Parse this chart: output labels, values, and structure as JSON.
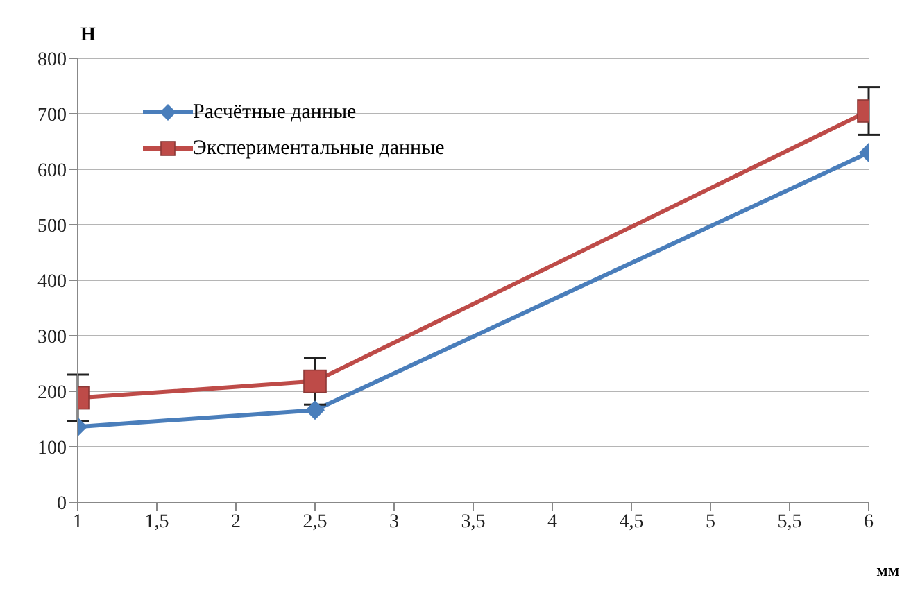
{
  "chart_data": {
    "type": "line",
    "xlabel": "мм",
    "ylabel": "Н",
    "x": [
      1,
      2.5,
      6
    ],
    "series": [
      {
        "name": "Расчётные данные",
        "color": "#4a7ebb",
        "marker": "diamond",
        "values": [
          136,
          166,
          630
        ]
      },
      {
        "name": "Экспериментальные данные",
        "color": "#be4b48",
        "marker": "square",
        "values": [
          188,
          218,
          705
        ],
        "errors": [
          42,
          42,
          43
        ]
      }
    ],
    "xlim": [
      1,
      6
    ],
    "xticks": [
      1,
      {
        "value": 1.5,
        "label": "1,5"
      },
      2,
      {
        "value": 2.5,
        "label": "2,5"
      },
      3,
      {
        "value": 3.5,
        "label": "3,5"
      },
      4,
      {
        "value": 4.5,
        "label": "4,5"
      },
      5,
      {
        "value": 5.5,
        "label": "5,5"
      },
      6
    ],
    "ylim": [
      0,
      800
    ],
    "yticks": [
      0,
      100,
      200,
      300,
      400,
      500,
      600,
      700,
      800
    ],
    "grid": "y",
    "legend": "top left",
    "line_style": "solid"
  }
}
